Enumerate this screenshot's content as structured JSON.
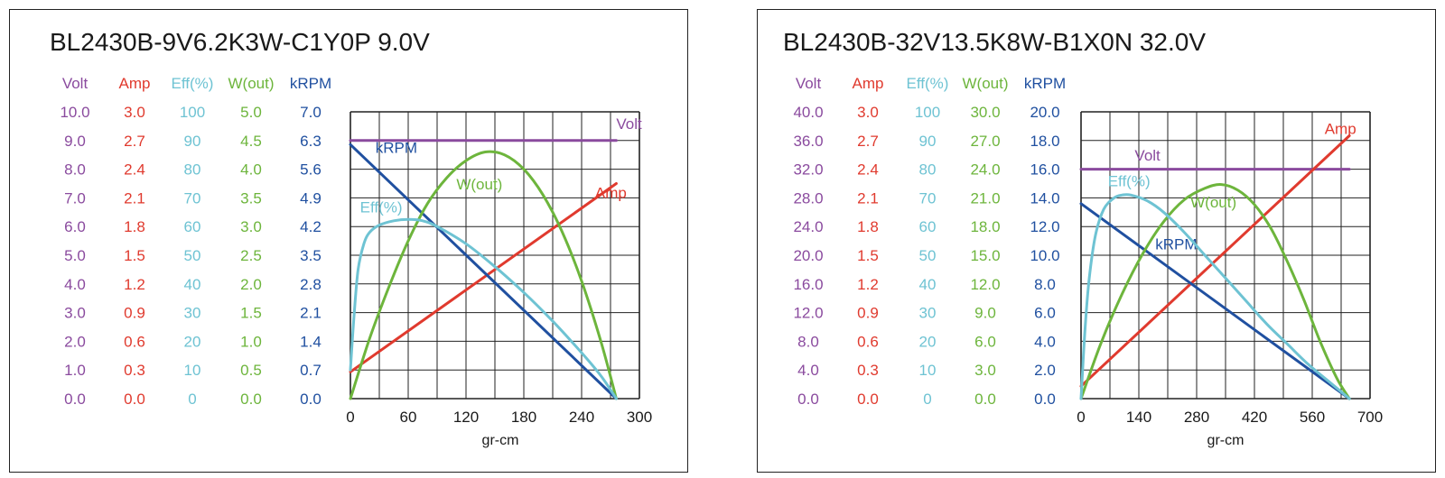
{
  "colors": {
    "volt": "#8a4a9e",
    "amp": "#e03a2e",
    "eff": "#6ec3d3",
    "wout": "#6db53c",
    "krpm": "#2050a0",
    "grid": "#222222"
  },
  "chart_data": [
    {
      "type": "line",
      "title": "BL2430B-9V6.2K3W-C1Y0P   9.0V",
      "xlabel": "gr-cm",
      "x_ticks": [
        0,
        60,
        120,
        180,
        240,
        300
      ],
      "xlim": [
        0,
        300
      ],
      "axis_headers": [
        "Volt",
        "Amp",
        "Eff(%)",
        "W(out)",
        "kRPM"
      ],
      "axis_ticks": {
        "volt": [
          "10.0",
          "9.0",
          "8.0",
          "7.0",
          "6.0",
          "5.0",
          "4.0",
          "3.0",
          "2.0",
          "1.0",
          "0.0"
        ],
        "amp": [
          "3.0",
          "2.7",
          "2.4",
          "2.1",
          "1.8",
          "1.5",
          "1.2",
          "0.9",
          "0.6",
          "0.3",
          "0.0"
        ],
        "eff": [
          "100",
          "90",
          "80",
          "70",
          "60",
          "50",
          "40",
          "30",
          "20",
          "10",
          "0"
        ],
        "wout": [
          "5.0",
          "4.5",
          "4.0",
          "3.5",
          "3.0",
          "2.5",
          "2.0",
          "1.5",
          "1.0",
          "0.5",
          "0.0"
        ],
        "krpm": [
          "7.0",
          "6.3",
          "5.6",
          "4.9",
          "4.2",
          "3.5",
          "2.8",
          "2.1",
          "1.4",
          "0.7",
          "0.0"
        ]
      },
      "series": [
        {
          "name": "Volt",
          "key": "volt",
          "max": 10.0,
          "label_at": [
            276,
            9.4
          ],
          "points": [
            [
              0,
              9.0
            ],
            [
              276,
              9.0
            ]
          ]
        },
        {
          "name": "Amp",
          "key": "amp",
          "max": 3.0,
          "label_at": [
            254,
            2.1
          ],
          "points": [
            [
              0,
              0.28
            ],
            [
              276,
              2.25
            ]
          ]
        },
        {
          "name": "kRPM",
          "key": "krpm",
          "max": 7.0,
          "label_at": [
            26,
            6.0
          ],
          "points": [
            [
              0,
              6.2
            ],
            [
              276,
              0.0
            ]
          ]
        },
        {
          "name": "W(out)",
          "key": "wout",
          "max": 5.0,
          "label_at": [
            110,
            3.65
          ],
          "points": [
            [
              0,
              0.0
            ],
            [
              20,
              1.05
            ],
            [
              40,
              1.95
            ],
            [
              60,
              2.75
            ],
            [
              80,
              3.4
            ],
            [
              100,
              3.85
            ],
            [
              120,
              4.15
            ],
            [
              140,
              4.3
            ],
            [
              160,
              4.25
            ],
            [
              180,
              4.0
            ],
            [
              200,
              3.55
            ],
            [
              220,
              2.9
            ],
            [
              240,
              2.05
            ],
            [
              260,
              1.0
            ],
            [
              276,
              0.0
            ]
          ]
        },
        {
          "name": "Eff(%)",
          "key": "eff",
          "max": 100,
          "label_at": [
            10,
            65
          ],
          "points": [
            [
              0,
              10
            ],
            [
              4,
              30
            ],
            [
              8,
              45
            ],
            [
              14,
              54
            ],
            [
              20,
              58
            ],
            [
              30,
              60.5
            ],
            [
              45,
              62
            ],
            [
              60,
              62.5
            ],
            [
              75,
              62
            ],
            [
              90,
              60
            ],
            [
              120,
              54
            ],
            [
              150,
              46
            ],
            [
              180,
              37
            ],
            [
              210,
              27
            ],
            [
              240,
              16
            ],
            [
              260,
              8
            ],
            [
              276,
              0
            ]
          ]
        }
      ]
    },
    {
      "type": "line",
      "title": "BL2430B-32V13.5K8W-B1X0N   32.0V",
      "xlabel": "gr-cm",
      "x_ticks": [
        0,
        140,
        280,
        420,
        560,
        700
      ],
      "xlim": [
        0,
        700
      ],
      "axis_headers": [
        "Volt",
        "Amp",
        "Eff(%)",
        "W(out)",
        "kRPM"
      ],
      "axis_ticks": {
        "volt": [
          "40.0",
          "36.0",
          "32.0",
          "28.0",
          "24.0",
          "20.0",
          "16.0",
          "12.0",
          "8.0",
          "4.0",
          "0.0"
        ],
        "amp": [
          "3.0",
          "2.7",
          "2.4",
          "2.1",
          "1.8",
          "1.5",
          "1.2",
          "0.9",
          "0.6",
          "0.3",
          "0.0"
        ],
        "eff": [
          "100",
          "90",
          "80",
          "70",
          "60",
          "50",
          "40",
          "30",
          "20",
          "10",
          "0"
        ],
        "wout": [
          "30.0",
          "27.0",
          "24.0",
          "21.0",
          "18.0",
          "15.0",
          "12.0",
          "9.0",
          "6.0",
          "3.0",
          "0.0"
        ],
        "krpm": [
          "20.0",
          "18.0",
          "16.0",
          "14.0",
          "12.0",
          "10.0",
          "8.0",
          "6.0",
          "4.0",
          "2.0",
          "0.0"
        ]
      },
      "series": [
        {
          "name": "Volt",
          "key": "volt",
          "max": 40.0,
          "label_at": [
            130,
            33.2
          ],
          "points": [
            [
              0,
              32.0
            ],
            [
              650,
              32.0
            ]
          ]
        },
        {
          "name": "Amp",
          "key": "amp",
          "max": 3.0,
          "label_at": [
            590,
            2.77
          ],
          "points": [
            [
              0,
              0.13
            ],
            [
              650,
              2.75
            ]
          ]
        },
        {
          "name": "kRPM",
          "key": "krpm",
          "max": 20.0,
          "label_at": [
            180,
            10.4
          ],
          "points": [
            [
              0,
              13.6
            ],
            [
              650,
              0.0
            ]
          ]
        },
        {
          "name": "W(out)",
          "key": "wout",
          "max": 30.0,
          "label_at": [
            265,
            20.0
          ],
          "points": [
            [
              0,
              0.0
            ],
            [
              50,
              6.0
            ],
            [
              100,
              11.0
            ],
            [
              150,
              15.2
            ],
            [
              200,
              18.5
            ],
            [
              250,
              20.8
            ],
            [
              300,
              22.0
            ],
            [
              340,
              22.4
            ],
            [
              380,
              21.8
            ],
            [
              420,
              20.3
            ],
            [
              460,
              17.8
            ],
            [
              500,
              14.3
            ],
            [
              540,
              10.3
            ],
            [
              580,
              5.9
            ],
            [
              620,
              2.1
            ],
            [
              650,
              0.0
            ]
          ]
        },
        {
          "name": "Eff(%)",
          "key": "eff",
          "max": 100,
          "label_at": [
            65,
            74
          ],
          "points": [
            [
              0,
              0
            ],
            [
              10,
              25
            ],
            [
              20,
              42
            ],
            [
              35,
              57
            ],
            [
              55,
              66
            ],
            [
              80,
              70
            ],
            [
              100,
              71
            ],
            [
              120,
              71
            ],
            [
              160,
              69
            ],
            [
              200,
              65
            ],
            [
              250,
              58
            ],
            [
              300,
              50
            ],
            [
              350,
              42
            ],
            [
              400,
              34
            ],
            [
              450,
              26
            ],
            [
              500,
              19
            ],
            [
              550,
              12
            ],
            [
              600,
              6
            ],
            [
              650,
              0
            ]
          ]
        }
      ]
    }
  ]
}
